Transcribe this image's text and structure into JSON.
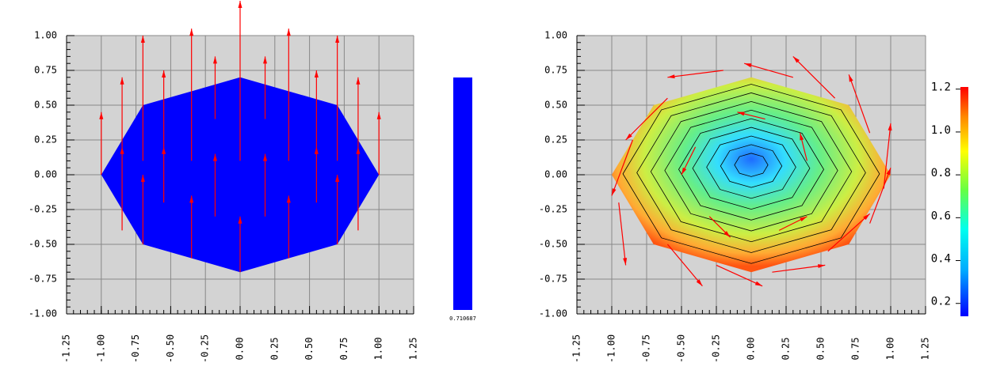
{
  "chart_data": [
    {
      "type": "vector_field",
      "shading": "flat",
      "contours": false,
      "xlim": [
        -1.25,
        1.25
      ],
      "ylim": [
        -1,
        1
      ],
      "xticks": [
        {
          "value": -1.25,
          "label": "-1.25"
        },
        {
          "value": -1,
          "label": "-1.00"
        },
        {
          "value": -0.75,
          "label": "-0.75"
        },
        {
          "value": -0.5,
          "label": "-0.50"
        },
        {
          "value": -0.25,
          "label": "-0.25"
        },
        {
          "value": 0,
          "label": "0.00"
        },
        {
          "value": 0.25,
          "label": "0.25"
        },
        {
          "value": 0.5,
          "label": "0.50"
        },
        {
          "value": 0.75,
          "label": "0.75"
        },
        {
          "value": 1,
          "label": "1.00"
        },
        {
          "value": 1.25,
          "label": "1.25"
        }
      ],
      "yticks": [
        {
          "value": -1,
          "label": "-1.00"
        },
        {
          "value": -0.75,
          "label": "-0.75"
        },
        {
          "value": -0.5,
          "label": "-0.50"
        },
        {
          "value": -0.25,
          "label": "-0.25"
        },
        {
          "value": 0,
          "label": "0.00"
        },
        {
          "value": 0.25,
          "label": "0.25"
        },
        {
          "value": 0.5,
          "label": "0.50"
        },
        {
          "value": 0.75,
          "label": "0.75"
        },
        {
          "value": 1,
          "label": "1.00"
        }
      ],
      "grid": true,
      "region": {
        "x": [
          -1,
          -0.7,
          0,
          0.7,
          1,
          0.7,
          0,
          -0.7
        ],
        "y": [
          0,
          0.5,
          0.7,
          0.5,
          0,
          -0.5,
          -0.7,
          -0.5
        ]
      },
      "region_color": "#0000ff",
      "arrow_color": "#ff0000",
      "vectors": {
        "x": [
          -1,
          -0.85,
          -0.85,
          -0.7,
          -0.7,
          -0.55,
          -0.55,
          -0.35,
          -0.35,
          -0.18,
          -0.18,
          0,
          0,
          0.18,
          0.18,
          0.35,
          0.35,
          0.55,
          0.55,
          0.7,
          0.7,
          0.85,
          0.85,
          1
        ],
        "y": [
          0,
          -0.4,
          0.2,
          -0.5,
          0.1,
          -0.2,
          0.2,
          -0.6,
          0.1,
          0.4,
          -0.3,
          -0.7,
          0.1,
          -0.3,
          0.4,
          -0.6,
          0.1,
          -0.2,
          0.2,
          -0.5,
          0.1,
          -0.4,
          0.2,
          0
        ],
        "u": [
          0,
          0,
          0,
          0,
          0,
          0,
          0,
          0,
          0,
          0,
          0,
          0,
          0,
          0,
          0,
          0,
          0,
          0,
          0,
          0,
          0,
          0,
          0,
          0
        ],
        "v": [
          0.45,
          0.6,
          0.5,
          0.5,
          0.9,
          0.4,
          0.55,
          0.45,
          0.95,
          0.45,
          0.45,
          0.4,
          1.15,
          0.45,
          0.45,
          0.45,
          0.95,
          0.4,
          0.55,
          0.5,
          0.9,
          0.6,
          0.5,
          0.45
        ]
      },
      "colorbar": {
        "color": "#0000ff",
        "value": 0.710687
      }
    },
    {
      "type": "vector_field",
      "shading": "interpolated",
      "contours": true,
      "xlim": [
        -1.25,
        1.25
      ],
      "ylim": [
        -1,
        1
      ],
      "xticks": [
        {
          "value": -1.25,
          "label": "-1.25"
        },
        {
          "value": -1,
          "label": "-1.00"
        },
        {
          "value": -0.75,
          "label": "-0.75"
        },
        {
          "value": -0.5,
          "label": "-0.50"
        },
        {
          "value": -0.25,
          "label": "-0.25"
        },
        {
          "value": 0,
          "label": "0.00"
        },
        {
          "value": 0.25,
          "label": "0.25"
        },
        {
          "value": 0.5,
          "label": "0.50"
        },
        {
          "value": 0.75,
          "label": "0.75"
        },
        {
          "value": 1,
          "label": "1.00"
        },
        {
          "value": 1.25,
          "label": "1.25"
        }
      ],
      "yticks": [
        {
          "value": -1,
          "label": "-1.00"
        },
        {
          "value": -0.75,
          "label": "-0.75"
        },
        {
          "value": -0.5,
          "label": "-0.50"
        },
        {
          "value": -0.25,
          "label": "-0.25"
        },
        {
          "value": 0,
          "label": "0.00"
        },
        {
          "value": 0.25,
          "label": "0.25"
        },
        {
          "value": 0.5,
          "label": "0.50"
        },
        {
          "value": 0.75,
          "label": "0.75"
        },
        {
          "value": 1,
          "label": "1.00"
        }
      ],
      "grid": true,
      "region": {
        "x": [
          -1,
          -0.7,
          0,
          0.7,
          1,
          0.7,
          0,
          -0.7
        ],
        "y": [
          0,
          0.5,
          0.7,
          0.5,
          0,
          -0.5,
          -0.7,
          -0.5
        ]
      },
      "arrow_color": "#ff0000",
      "vectors": {
        "x": [
          -0.95,
          -0.85,
          -0.6,
          -0.2,
          0.3,
          0.6,
          0.85,
          0.95,
          0.85,
          0.55,
          0.15,
          -0.25,
          -0.6,
          -0.4,
          0.1,
          0.4,
          0.2,
          -0.3
        ],
        "y": [
          -0.2,
          0.25,
          0.55,
          0.75,
          0.7,
          0.55,
          0.3,
          -0.1,
          -0.35,
          -0.55,
          -0.7,
          -0.65,
          -0.5,
          0.2,
          0.4,
          0.1,
          -0.4,
          -0.3
        ],
        "u": [
          0.05,
          -0.15,
          -0.3,
          -0.4,
          -0.35,
          -0.3,
          -0.15,
          0.05,
          0.15,
          0.3,
          0.38,
          0.33,
          0.25,
          -0.1,
          -0.2,
          -0.05,
          0.2,
          0.15
        ],
        "v": [
          -0.45,
          -0.4,
          -0.3,
          -0.05,
          0.1,
          0.3,
          0.42,
          0.47,
          0.4,
          0.27,
          0.05,
          -0.15,
          -0.3,
          -0.2,
          0.05,
          0.2,
          0.1,
          -0.15
        ]
      },
      "colorbar": {
        "colormap": "jet",
        "lim": [
          0.14,
          1.21
        ],
        "ticks": [
          0.2,
          0.4,
          0.6,
          0.8,
          {
            "value": 1,
            "label": "1.0"
          },
          1.2
        ]
      }
    }
  ]
}
